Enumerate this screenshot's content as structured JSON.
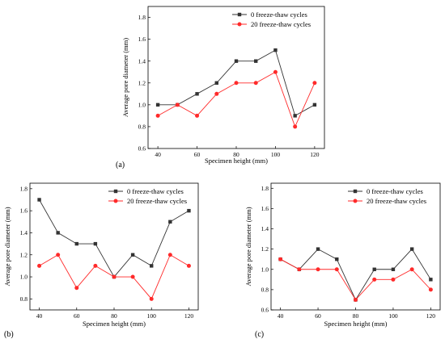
{
  "chart_data": [
    {
      "type": "line",
      "panel_label": "(a)",
      "xlabel": "Specimen height (mm)",
      "ylabel": "Average pore diameter (mm)",
      "x": [
        40,
        50,
        60,
        70,
        80,
        90,
        100,
        110,
        120
      ],
      "xticks": [
        40,
        60,
        80,
        100,
        120
      ],
      "xlim": [
        35,
        125
      ],
      "ylim": [
        0.6,
        1.9
      ],
      "yticks": [
        0.6,
        0.8,
        1.0,
        1.2,
        1.4,
        1.6,
        1.8
      ],
      "legend_position": "top-right",
      "series": [
        {
          "name": "0 freeze-thaw cycles",
          "color": "#333333",
          "marker": "square",
          "values": [
            1.0,
            1.0,
            1.1,
            1.2,
            1.4,
            1.4,
            1.5,
            0.9,
            1.0
          ]
        },
        {
          "name": "20 freeze-thaw cycles",
          "color": "#ff2a2a",
          "marker": "circle",
          "values": [
            0.9,
            1.0,
            0.9,
            1.1,
            1.2,
            1.2,
            1.3,
            0.8,
            1.2
          ]
        }
      ]
    },
    {
      "type": "line",
      "panel_label": "(b)",
      "xlabel": "Specimen height (mm)",
      "ylabel": "Average pore diameter (mm)",
      "x": [
        40,
        50,
        60,
        70,
        80,
        90,
        100,
        110,
        120
      ],
      "xticks": [
        40,
        60,
        80,
        100,
        120
      ],
      "xlim": [
        35,
        125
      ],
      "ylim": [
        0.7,
        1.85
      ],
      "yticks": [
        0.8,
        1.0,
        1.2,
        1.4,
        1.6,
        1.8
      ],
      "legend_position": "top-right",
      "series": [
        {
          "name": "0 freeze-thaw cycles",
          "color": "#333333",
          "marker": "square",
          "values": [
            1.7,
            1.4,
            1.3,
            1.3,
            1.0,
            1.2,
            1.1,
            1.5,
            1.6
          ]
        },
        {
          "name": "20 freeze-thaw cycles",
          "color": "#ff2a2a",
          "marker": "circle",
          "values": [
            1.1,
            1.2,
            0.9,
            1.1,
            1.0,
            1.0,
            0.8,
            1.2,
            1.1
          ]
        }
      ]
    },
    {
      "type": "line",
      "panel_label": "(c)",
      "xlabel": "Specimen height (mm)",
      "ylabel": "Average pore diameter (mm)",
      "x": [
        40,
        50,
        60,
        70,
        80,
        90,
        100,
        110,
        120
      ],
      "xticks": [
        40,
        60,
        80,
        100,
        120
      ],
      "xlim": [
        35,
        125
      ],
      "ylim": [
        0.6,
        1.85
      ],
      "yticks": [
        0.6,
        0.8,
        1.0,
        1.2,
        1.4,
        1.6,
        1.8
      ],
      "legend_position": "top-right",
      "series": [
        {
          "name": "0 freeze-thaw cycles",
          "color": "#333333",
          "marker": "square",
          "values": [
            1.1,
            1.0,
            1.2,
            1.1,
            0.7,
            1.0,
            1.0,
            1.2,
            0.9
          ]
        },
        {
          "name": "20 freeze-thaw cycles",
          "color": "#ff2a2a",
          "marker": "circle",
          "values": [
            1.1,
            1.0,
            1.0,
            1.0,
            0.7,
            0.9,
            0.9,
            1.0,
            0.8
          ]
        }
      ]
    }
  ]
}
